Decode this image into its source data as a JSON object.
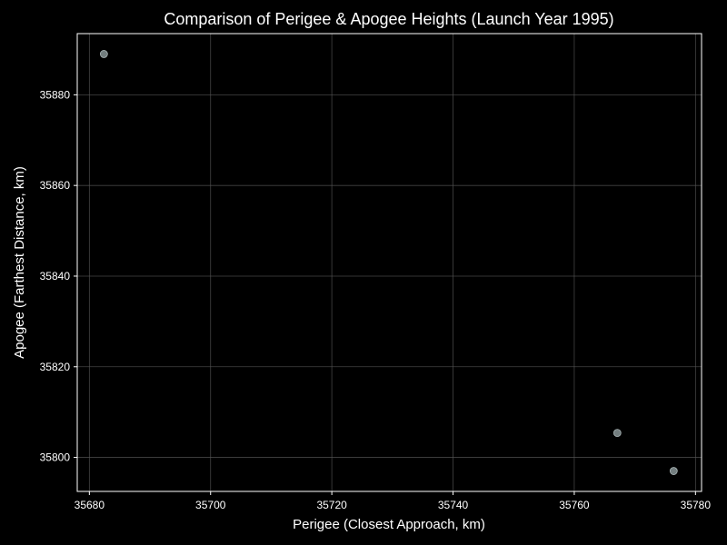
{
  "chart_data": {
    "type": "scatter",
    "title": "Comparison of Perigee & Apogee Heights (Launch Year 1995)",
    "xlabel": "Perigee (Closest Approach, km)",
    "ylabel": "Apogee (Farthest Distance, km)",
    "xlim": [
      35678,
      35781
    ],
    "ylim": [
      35792.5,
      35893.5
    ],
    "xticks": [
      35680,
      35700,
      35720,
      35740,
      35760,
      35780
    ],
    "yticks": [
      35800,
      35820,
      35840,
      35860,
      35880
    ],
    "xtick_labels": [
      "35680",
      "35700",
      "35720",
      "35740",
      "35760",
      "35780"
    ],
    "ytick_labels": [
      "35800",
      "35820",
      "35840",
      "35860",
      "35880"
    ],
    "grid": true,
    "points": [
      {
        "x": 35682.4,
        "y": 35889.0
      },
      {
        "x": 35767.1,
        "y": 35805.4
      },
      {
        "x": 35776.4,
        "y": 35797.0
      }
    ],
    "colors": {
      "background": "#000000",
      "point": "#7f8c8d",
      "grid": "#555555",
      "axis": "#ffffff",
      "text": "#ffffff"
    }
  }
}
